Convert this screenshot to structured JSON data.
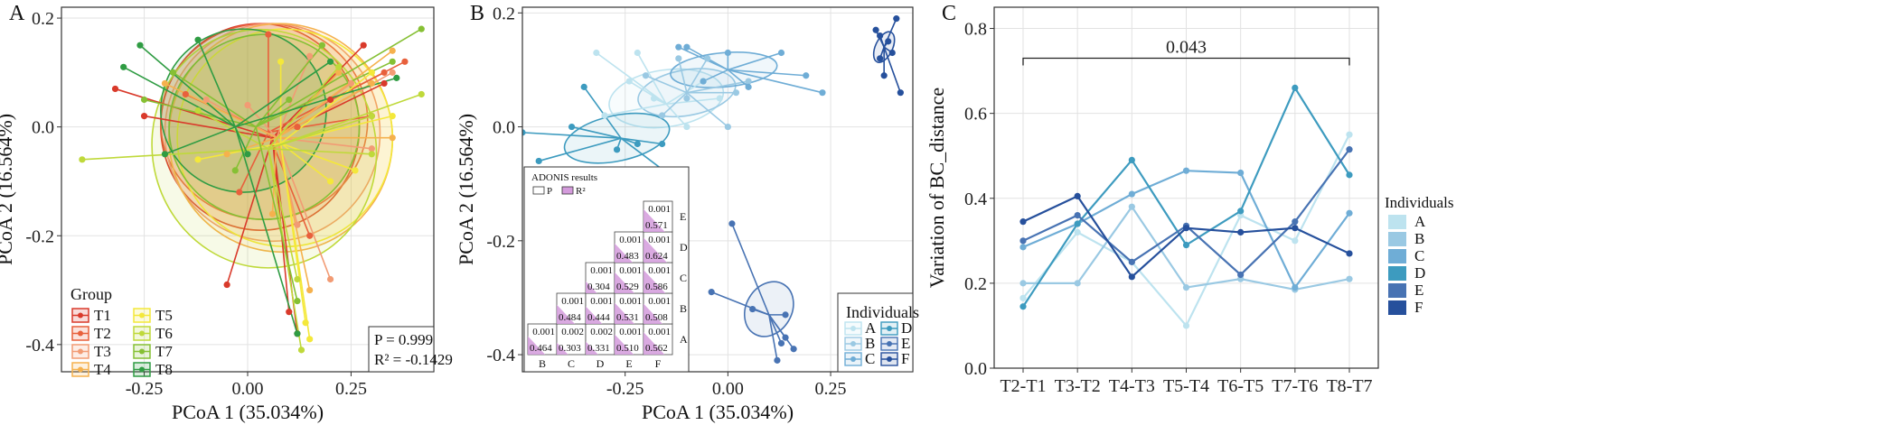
{
  "chart_data": [
    {
      "panel": "A",
      "type": "scatter",
      "xlabel": "PCoA 1 (35.034%)",
      "ylabel": "PCoA 2 (16.564%)",
      "xlim": [
        -0.45,
        0.45
      ],
      "ylim": [
        -0.45,
        0.22
      ],
      "xticks": [
        "-0.25",
        "0.00",
        "0.25"
      ],
      "xtick_values": [
        -0.25,
        0.0,
        0.25
      ],
      "yticks": [
        "0.2",
        "0.0",
        "-0.2",
        "-0.4"
      ],
      "ytick_values": [
        0.2,
        0.0,
        -0.2,
        -0.4
      ],
      "grid": true,
      "legend_title": "Group",
      "legend_position": "bottom-left",
      "stats": [
        "P = 0.999",
        "R² = -0.1429"
      ],
      "groups": [
        {
          "name": "T1",
          "color": "#d93a2b",
          "centroid": [
            0.06,
            -0.02
          ],
          "ellipse": {
            "cx": 0.03,
            "cy": 0.0,
            "rx": 0.24,
            "ry": 0.19,
            "angle": -5
          },
          "points": [
            [
              -0.32,
              0.07
            ],
            [
              -0.25,
              0.02
            ],
            [
              -0.05,
              -0.29
            ],
            [
              0.1,
              -0.34
            ],
            [
              0.2,
              0.05
            ],
            [
              0.33,
              0.08
            ],
            [
              0.28,
              0.15
            ],
            [
              0.12,
              -0.38
            ]
          ]
        },
        {
          "name": "T2",
          "color": "#e8603c",
          "centroid": [
            0.05,
            -0.01
          ],
          "ellipse": {
            "cx": 0.04,
            "cy": 0.01,
            "rx": 0.25,
            "ry": 0.18,
            "angle": -3
          },
          "points": [
            [
              -0.15,
              0.06
            ],
            [
              0.33,
              0.1
            ],
            [
              0.3,
              0.02
            ],
            [
              -0.02,
              -0.12
            ],
            [
              0.12,
              0.0
            ],
            [
              0.38,
              0.12
            ],
            [
              0.15,
              -0.2
            ],
            [
              0.05,
              0.17
            ]
          ]
        },
        {
          "name": "T3",
          "color": "#f29b74",
          "centroid": [
            0.07,
            -0.02
          ],
          "ellipse": {
            "cx": 0.06,
            "cy": -0.01,
            "rx": 0.26,
            "ry": 0.2,
            "angle": -8
          },
          "points": [
            [
              -0.1,
              0.05
            ],
            [
              0.25,
              0.08
            ],
            [
              0.3,
              -0.04
            ],
            [
              0.35,
              0.1
            ],
            [
              0.12,
              -0.18
            ],
            [
              0.0,
              0.04
            ],
            [
              0.2,
              -0.28
            ],
            [
              0.15,
              0.13
            ]
          ]
        },
        {
          "name": "T4",
          "color": "#f5b14d",
          "centroid": [
            0.07,
            -0.02
          ],
          "ellipse": {
            "cx": 0.08,
            "cy": -0.02,
            "rx": 0.27,
            "ry": 0.21,
            "angle": -10
          },
          "points": [
            [
              -0.2,
              0.08
            ],
            [
              -0.05,
              -0.05
            ],
            [
              0.3,
              0.08
            ],
            [
              0.35,
              -0.02
            ],
            [
              0.15,
              -0.3
            ],
            [
              0.22,
              0.1
            ],
            [
              0.06,
              -0.16
            ],
            [
              0.35,
              0.14
            ]
          ]
        },
        {
          "name": "T5",
          "color": "#f4e83a",
          "centroid": [
            0.08,
            -0.03
          ],
          "ellipse": {
            "cx": 0.09,
            "cy": -0.02,
            "rx": 0.26,
            "ry": 0.2,
            "angle": -12
          },
          "points": [
            [
              0.15,
              -0.39
            ],
            [
              0.14,
              -0.36
            ],
            [
              0.2,
              -0.1
            ],
            [
              0.3,
              0.1
            ],
            [
              -0.12,
              -0.06
            ],
            [
              0.35,
              0.02
            ],
            [
              0.08,
              0.12
            ],
            [
              0.26,
              -0.08
            ]
          ]
        },
        {
          "name": "T6",
          "color": "#bfd93a",
          "centroid": [
            0.05,
            -0.04
          ],
          "ellipse": {
            "cx": 0.04,
            "cy": -0.04,
            "rx": 0.27,
            "ry": 0.22,
            "angle": -15
          },
          "points": [
            [
              -0.4,
              -0.06
            ],
            [
              0.13,
              -0.41
            ],
            [
              0.3,
              0.02
            ],
            [
              0.42,
              0.06
            ],
            [
              -0.12,
              0.03
            ],
            [
              0.3,
              -0.05
            ],
            [
              0.12,
              -0.28
            ],
            [
              0.22,
              0.11
            ]
          ]
        },
        {
          "name": "T7",
          "color": "#86c034",
          "centroid": [
            0.02,
            0.0
          ],
          "ellipse": {
            "cx": 0.04,
            "cy": 0.0,
            "rx": 0.23,
            "ry": 0.17,
            "angle": -5
          },
          "points": [
            [
              -0.25,
              0.05
            ],
            [
              -0.18,
              0.1
            ],
            [
              0.12,
              -0.32
            ],
            [
              0.42,
              0.18
            ],
            [
              0.35,
              0.12
            ],
            [
              -0.03,
              -0.08
            ],
            [
              0.18,
              0.15
            ],
            [
              0.1,
              0.05
            ]
          ]
        },
        {
          "name": "T8",
          "color": "#2f9c43",
          "centroid": [
            -0.03,
            0.0
          ],
          "ellipse": {
            "cx": -0.01,
            "cy": 0.03,
            "rx": 0.2,
            "ry": 0.15,
            "angle": 0
          },
          "points": [
            [
              -0.26,
              0.15
            ],
            [
              -0.3,
              0.11
            ],
            [
              -0.2,
              -0.05
            ],
            [
              0.2,
              0.12
            ],
            [
              0.36,
              0.09
            ],
            [
              0.12,
              -0.38
            ],
            [
              -0.12,
              0.16
            ],
            [
              0.0,
              -0.05
            ]
          ]
        }
      ]
    },
    {
      "panel": "B",
      "type": "scatter",
      "xlabel": "PCoA 1 (35.034%)",
      "ylabel": "PCoA 2 (16.564%)",
      "xlim": [
        -0.5,
        0.45
      ],
      "ylim": [
        -0.43,
        0.21
      ],
      "xticks": [
        "-0.25",
        "0.00",
        "0.25"
      ],
      "xtick_values": [
        -0.25,
        0.0,
        0.25
      ],
      "yticks": [
        "0.2",
        "0.0",
        "-0.2",
        "-0.4"
      ],
      "ytick_values": [
        0.2,
        0.0,
        -0.2,
        -0.4
      ],
      "grid": true,
      "legend_title": "Individuals",
      "legend_position": "bottom-right",
      "groups": [
        {
          "name": "A",
          "color": "#bde3ef",
          "centroid": [
            -0.15,
            0.04
          ],
          "ellipse": {
            "cx": -0.15,
            "cy": 0.05,
            "rx": 0.14,
            "ry": 0.05,
            "angle": -8
          },
          "points": [
            [
              -0.32,
              0.13
            ],
            [
              -0.22,
              0.13
            ],
            [
              -0.06,
              0.08
            ],
            [
              -0.02,
              0.05
            ],
            [
              -0.3,
              0.02
            ],
            [
              -0.1,
              0.0
            ],
            [
              -0.18,
              0.05
            ],
            [
              -0.24,
              0.08
            ]
          ]
        },
        {
          "name": "B",
          "color": "#9ac9e3",
          "centroid": [
            -0.1,
            0.06
          ],
          "ellipse": {
            "cx": -0.1,
            "cy": 0.06,
            "rx": 0.12,
            "ry": 0.04,
            "angle": -10
          },
          "points": [
            [
              -0.2,
              0.09
            ],
            [
              -0.12,
              0.12
            ],
            [
              -0.1,
              0.05
            ],
            [
              0.02,
              0.06
            ],
            [
              0.05,
              0.08
            ],
            [
              -0.16,
              0.02
            ],
            [
              -0.05,
              0.12
            ],
            [
              0.0,
              0.0
            ]
          ]
        },
        {
          "name": "C",
          "color": "#6fadd6",
          "centroid": [
            0.0,
            0.1
          ],
          "ellipse": {
            "cx": -0.01,
            "cy": 0.1,
            "rx": 0.13,
            "ry": 0.03,
            "angle": -5
          },
          "points": [
            [
              0.13,
              0.13
            ],
            [
              0.19,
              0.09
            ],
            [
              0.23,
              0.06
            ],
            [
              -0.12,
              0.14
            ],
            [
              -0.06,
              0.08
            ],
            [
              0.05,
              0.07
            ],
            [
              -0.1,
              0.14
            ],
            [
              0.0,
              0.13
            ]
          ]
        },
        {
          "name": "D",
          "color": "#3d9bbf",
          "centroid": [
            -0.26,
            -0.02
          ],
          "ellipse": {
            "cx": -0.27,
            "cy": -0.02,
            "rx": 0.13,
            "ry": 0.04,
            "angle": -12
          },
          "points": [
            [
              -0.5,
              -0.01
            ],
            [
              -0.46,
              -0.06
            ],
            [
              -0.35,
              0.07
            ],
            [
              -0.22,
              -0.03
            ],
            [
              -0.16,
              -0.03
            ],
            [
              -0.27,
              -0.04
            ],
            [
              -0.15,
              -0.08
            ],
            [
              -0.38,
              0.0
            ]
          ]
        },
        {
          "name": "E",
          "color": "#4873b3",
          "centroid": [
            0.1,
            -0.33
          ],
          "ellipse": {
            "cx": 0.1,
            "cy": -0.32,
            "rx": 0.07,
            "ry": 0.04,
            "angle": -60
          },
          "points": [
            [
              0.01,
              -0.17
            ],
            [
              -0.04,
              -0.29
            ],
            [
              0.14,
              -0.33
            ],
            [
              0.14,
              -0.37
            ],
            [
              0.13,
              -0.38
            ],
            [
              0.12,
              -0.41
            ],
            [
              0.06,
              -0.32
            ],
            [
              0.16,
              -0.39
            ]
          ]
        },
        {
          "name": "F",
          "color": "#26509c",
          "centroid": [
            0.38,
            0.14
          ],
          "ellipse": {
            "cx": 0.38,
            "cy": 0.14,
            "rx": 0.04,
            "ry": 0.015,
            "angle": -65
          },
          "points": [
            [
              0.36,
              0.17
            ],
            [
              0.37,
              0.16
            ],
            [
              0.37,
              0.12
            ],
            [
              0.38,
              0.09
            ],
            [
              0.4,
              0.13
            ],
            [
              0.41,
              0.19
            ],
            [
              0.42,
              0.06
            ],
            [
              0.39,
              0.15
            ]
          ]
        }
      ],
      "adonis": {
        "title": "ADONIS results",
        "legend": [
          "P",
          "R²"
        ],
        "rows": [
          "A",
          "B",
          "C",
          "D",
          "E"
        ],
        "cols": [
          "B",
          "C",
          "D",
          "E",
          "F"
        ],
        "cells": [
          {
            "row": "A",
            "col": "B",
            "p": "0.001",
            "r2": "0.464"
          },
          {
            "row": "A",
            "col": "C",
            "p": "0.002",
            "r2": "0.303"
          },
          {
            "row": "A",
            "col": "D",
            "p": "0.002",
            "r2": "0.331"
          },
          {
            "row": "A",
            "col": "E",
            "p": "0.001",
            "r2": "0.510"
          },
          {
            "row": "A",
            "col": "F",
            "p": "0.001",
            "r2": "0.562"
          },
          {
            "row": "B",
            "col": "C",
            "p": "0.001",
            "r2": "0.484"
          },
          {
            "row": "B",
            "col": "D",
            "p": "0.001",
            "r2": "0.444"
          },
          {
            "row": "B",
            "col": "E",
            "p": "0.001",
            "r2": "0.531"
          },
          {
            "row": "B",
            "col": "F",
            "p": "0.001",
            "r2": "0.508"
          },
          {
            "row": "C",
            "col": "D",
            "p": "0.001",
            "r2": "0.304"
          },
          {
            "row": "C",
            "col": "E",
            "p": "0.001",
            "r2": "0.529"
          },
          {
            "row": "C",
            "col": "F",
            "p": "0.001",
            "r2": "0.586"
          },
          {
            "row": "D",
            "col": "E",
            "p": "0.001",
            "r2": "0.483"
          },
          {
            "row": "D",
            "col": "F",
            "p": "0.001",
            "r2": "0.624"
          },
          {
            "row": "E",
            "col": "F",
            "p": "0.001",
            "r2": "0.571"
          }
        ]
      }
    },
    {
      "panel": "C",
      "type": "line",
      "categories": [
        "T2-T1",
        "T3-T2",
        "T4-T3",
        "T5-T4",
        "T6-T5",
        "T7-T6",
        "T8-T7"
      ],
      "xlabel": "",
      "ylabel": "Variation of BC_distance",
      "ylim": [
        0.0,
        0.85
      ],
      "yticks": [
        "0.0",
        "0.2",
        "0.4",
        "0.6",
        "0.8"
      ],
      "ytick_values": [
        0.0,
        0.2,
        0.4,
        0.6,
        0.8
      ],
      "grid": true,
      "legend_title": "Individuals",
      "legend_position": "right",
      "annotation": {
        "text": "0.043",
        "from": "T2-T1",
        "to": "T8-T7",
        "y": 0.73
      },
      "series": [
        {
          "name": "A",
          "color": "#bde3ef",
          "values": [
            0.165,
            0.32,
            0.25,
            0.1,
            0.36,
            0.3,
            0.55
          ]
        },
        {
          "name": "B",
          "color": "#9ac9e3",
          "values": [
            0.2,
            0.2,
            0.38,
            0.19,
            0.21,
            0.185,
            0.21
          ]
        },
        {
          "name": "C",
          "color": "#6fadd6",
          "values": [
            0.285,
            0.34,
            0.41,
            0.465,
            0.46,
            0.19,
            0.365
          ]
        },
        {
          "name": "D",
          "color": "#3d9bbf",
          "values": [
            0.145,
            0.34,
            0.49,
            0.29,
            0.37,
            0.66,
            0.455
          ]
        },
        {
          "name": "E",
          "color": "#4873b3",
          "values": [
            0.3,
            0.36,
            0.25,
            0.335,
            0.22,
            0.345,
            0.515
          ]
        },
        {
          "name": "F",
          "color": "#26509c",
          "values": [
            0.345,
            0.405,
            0.215,
            0.33,
            0.32,
            0.33,
            0.27
          ]
        }
      ]
    }
  ]
}
